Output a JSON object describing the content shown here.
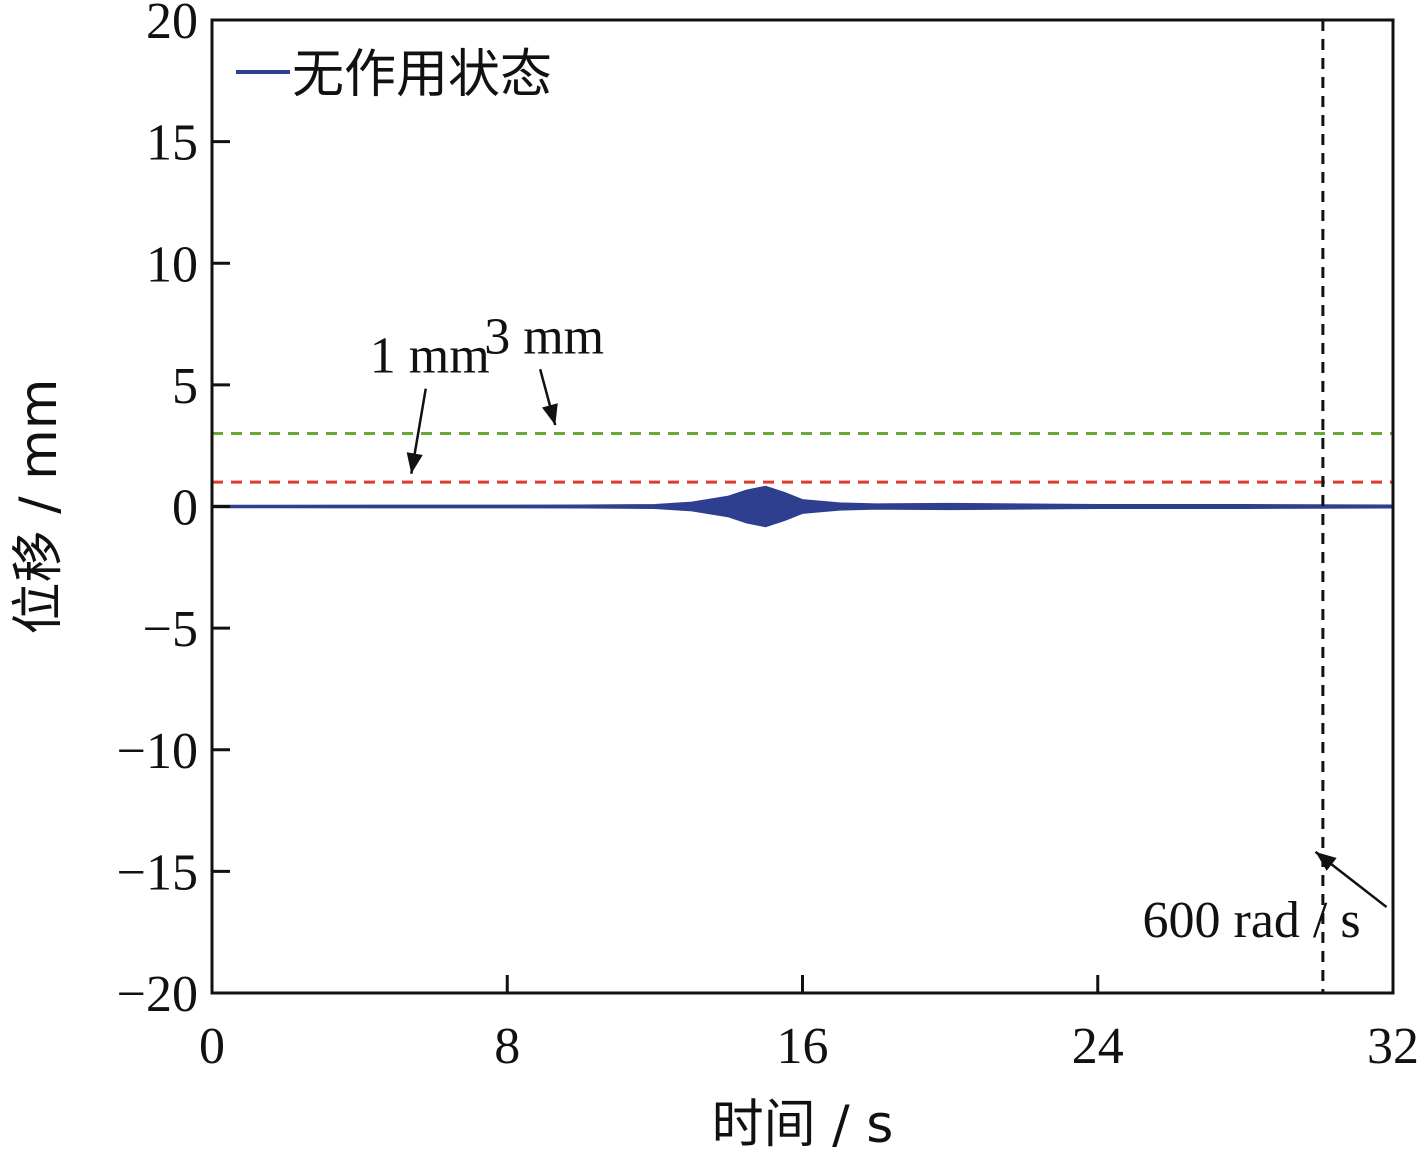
{
  "chart_data": {
    "type": "line",
    "xlabel": "时间 / s",
    "ylabel": "位移 / mm",
    "xlim": [
      0,
      32
    ],
    "ylim": [
      -20,
      20
    ],
    "xticks": [
      0,
      8,
      16,
      24,
      32
    ],
    "yticks": [
      -20,
      -15,
      -10,
      -5,
      0,
      5,
      10,
      15,
      20
    ],
    "ytick_labels": [
      "−20",
      "−15",
      "−10",
      "−5",
      "0",
      "5",
      "10",
      "15",
      "20"
    ],
    "grid": false,
    "legend_position": "top-left",
    "series": [
      {
        "name": "无作用状态",
        "color": "#2e3f8f",
        "style": "oscillation-envelope",
        "envelope": {
          "x": [
            0,
            10,
            12,
            13,
            14,
            14.5,
            15,
            15.5,
            16,
            17,
            18,
            20,
            24,
            28,
            32
          ],
          "y_upper": [
            0.02,
            0.03,
            0.05,
            0.15,
            0.4,
            0.65,
            0.8,
            0.55,
            0.25,
            0.12,
            0.08,
            0.1,
            0.05,
            0.05,
            0.03
          ],
          "y_lower": [
            -0.02,
            -0.03,
            -0.05,
            -0.15,
            -0.4,
            -0.65,
            -0.8,
            -0.55,
            -0.25,
            -0.12,
            -0.08,
            -0.1,
            -0.05,
            -0.05,
            -0.03
          ]
        }
      }
    ],
    "reference_lines": [
      {
        "type": "horizontal",
        "y": 3,
        "label": "3 mm",
        "color": "#6aaa34",
        "style": "dashed",
        "label_x": 9.0,
        "label_y": 6.3,
        "arrow_to_x": 9.3,
        "arrow_to_y": 3.1
      },
      {
        "type": "horizontal",
        "y": 1,
        "label": "1 mm",
        "color": "#e03a2e",
        "style": "dashed",
        "label_x": 5.9,
        "label_y": 5.5,
        "arrow_to_x": 5.4,
        "arrow_to_y": 1.1
      },
      {
        "type": "vertical",
        "x": 30.1,
        "label": "600 rad / s",
        "color": "#111111",
        "style": "dashed",
        "label_x": 26.0,
        "label_y": -17.7,
        "arrow_to_x": 29.9,
        "arrow_to_y": -14.2
      }
    ]
  }
}
